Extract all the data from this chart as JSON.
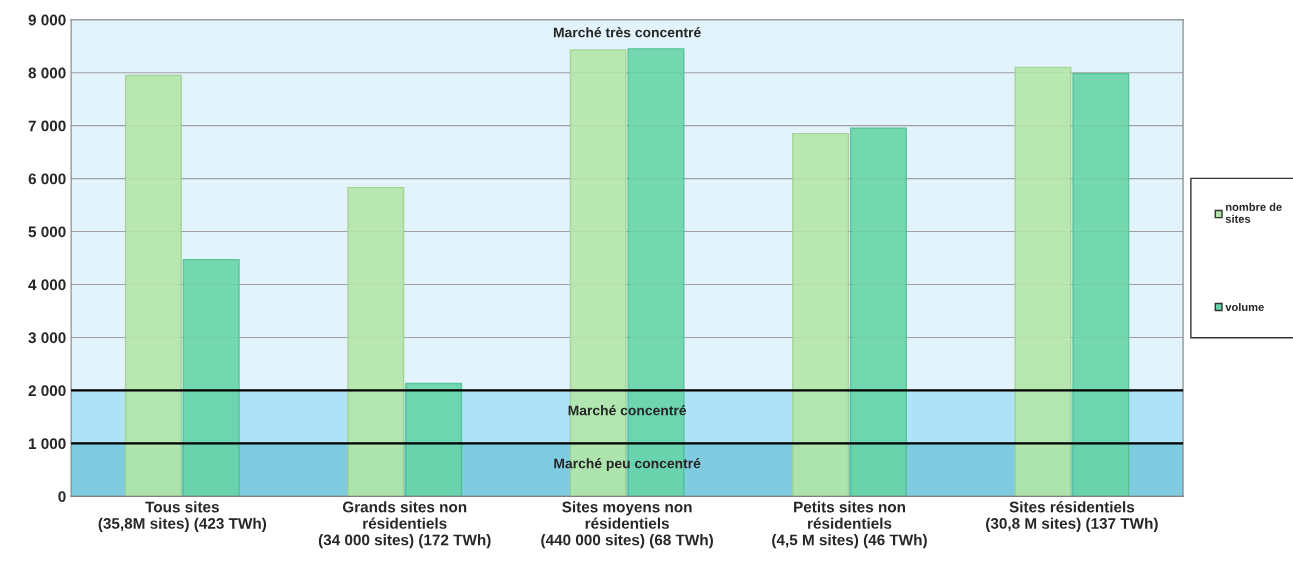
{
  "chart_data": {
    "type": "bar",
    "categories": [
      "Tous sites\n(35,8M sites) (423 TWh)",
      "Grands sites non\nrésidentiels\n(34 000 sites) (172 TWh)",
      "Sites moyens non\nrésidentiels\n(440 000 sites) (68 TWh)",
      "Petits sites non\nrésidentiels\n(4,5 M sites) (46 TWh)",
      "Sites résidentiels\n(30,8 M sites) (137 TWh)"
    ],
    "series": [
      {
        "name": "nombre de\nsites",
        "color": "#b3e6a8",
        "values": [
          7950,
          5830,
          8430,
          6850,
          8100
        ]
      },
      {
        "name": "volume",
        "color": "#66d4a8",
        "values": [
          4470,
          2130,
          8450,
          6950,
          7980
        ]
      }
    ],
    "ylim": [
      0,
      9000
    ],
    "yticks": [
      {
        "value": 0,
        "label": "0"
      },
      {
        "value": 1000,
        "label": "1 000"
      },
      {
        "value": 2000,
        "label": "2 000"
      },
      {
        "value": 3000,
        "label": "3 000"
      },
      {
        "value": 4000,
        "label": "4 000"
      },
      {
        "value": 5000,
        "label": "5 000"
      },
      {
        "value": 6000,
        "label": "6 000"
      },
      {
        "value": 7000,
        "label": "7 000"
      },
      {
        "value": 8000,
        "label": "8 000"
      },
      {
        "value": 9000,
        "label": "9 000"
      }
    ],
    "bands": [
      {
        "axis": "y",
        "from": 0,
        "to": 1000,
        "label": "Marché peu concentré",
        "color": "#7fcce0"
      },
      {
        "axis": "y",
        "from": 1000,
        "to": 2000,
        "label": "Marché concentré",
        "color": "#aee3f7"
      },
      {
        "axis": "y",
        "from": 2000,
        "to": 9000,
        "label": "Marché très concentré",
        "color": "#e3f3fc"
      }
    ],
    "grid": "y",
    "legend": "right"
  }
}
